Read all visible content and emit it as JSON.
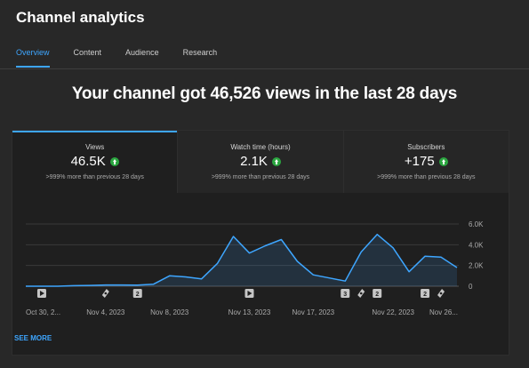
{
  "header": {
    "title": "Channel analytics",
    "tabs": [
      {
        "label": "Overview",
        "active": true
      },
      {
        "label": "Content",
        "active": false
      },
      {
        "label": "Audience",
        "active": false
      },
      {
        "label": "Research",
        "active": false
      }
    ]
  },
  "headline": "Your channel got 46,526 views in the last 28 days",
  "metrics": [
    {
      "label": "Views",
      "value": "46.5K",
      "change": ">999% more than previous 28 days",
      "active": true
    },
    {
      "label": "Watch time (hours)",
      "value": "2.1K",
      "change": ">999% more than previous 28 days",
      "active": false
    },
    {
      "label": "Subscribers",
      "value": "+175",
      "change": ">999% more than previous 28 days",
      "active": false
    }
  ],
  "colors": {
    "accent": "#3ea6ff",
    "positive": "#2ba640",
    "line": "#3ea6ff"
  },
  "chart_data": {
    "type": "area",
    "x": [
      "Oct 30",
      "Oct 31",
      "Nov 1",
      "Nov 2",
      "Nov 3",
      "Nov 4",
      "Nov 5",
      "Nov 6",
      "Nov 7",
      "Nov 8",
      "Nov 9",
      "Nov 10",
      "Nov 11",
      "Nov 12",
      "Nov 13",
      "Nov 14",
      "Nov 15",
      "Nov 16",
      "Nov 17",
      "Nov 18",
      "Nov 19",
      "Nov 20",
      "Nov 21",
      "Nov 22",
      "Nov 23",
      "Nov 24",
      "Nov 25",
      "Nov 26"
    ],
    "series": [
      {
        "values": [
          0,
          0,
          0,
          50,
          80,
          120,
          120,
          100,
          200,
          1000,
          900,
          700,
          2200,
          4800,
          3200,
          3900,
          4500,
          2400,
          1100,
          800,
          500,
          3300,
          5000,
          3700,
          1400,
          2900,
          2800,
          1800
        ]
      }
    ],
    "ylim": [
      0,
      6000
    ],
    "y_ticks": [
      "0",
      "2.0K",
      "4.0K",
      "6.0K"
    ],
    "x_tick_labels": [
      "Oct 30, 2...",
      "Nov 4, 2023",
      "Nov 8, 2023",
      "Nov 13, 2023",
      "Nov 17, 2023",
      "Nov 22, 2023",
      "Nov 26..."
    ],
    "x_tick_index": [
      0,
      5,
      9,
      14,
      18,
      23,
      27
    ],
    "grid": true,
    "markers": [
      {
        "index": 1,
        "kind": "video",
        "label": ""
      },
      {
        "index": 5,
        "kind": "shorts",
        "label": ""
      },
      {
        "index": 7,
        "kind": "count",
        "label": "2"
      },
      {
        "index": 14,
        "kind": "video",
        "label": ""
      },
      {
        "index": 20,
        "kind": "count",
        "label": "3"
      },
      {
        "index": 21,
        "kind": "shorts",
        "label": ""
      },
      {
        "index": 22,
        "kind": "count",
        "label": "2"
      },
      {
        "index": 25,
        "kind": "count",
        "label": "2"
      },
      {
        "index": 26,
        "kind": "shorts",
        "label": ""
      }
    ]
  },
  "see_more": "SEE MORE"
}
